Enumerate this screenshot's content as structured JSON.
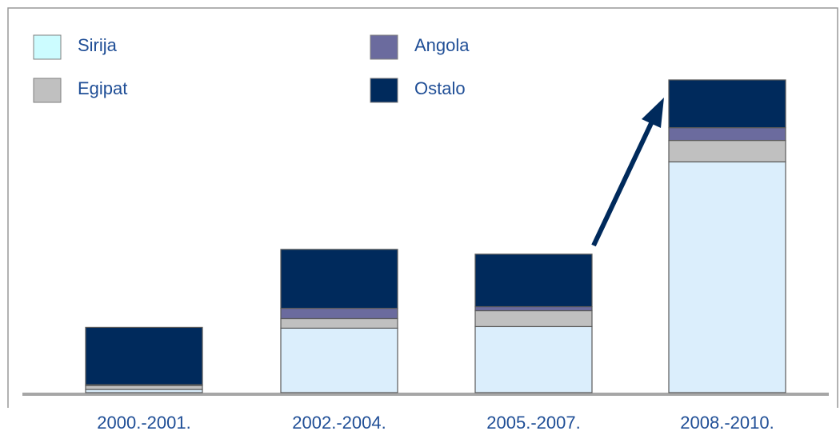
{
  "chart_data": {
    "type": "stacked_bar",
    "categories": [
      "2000.-2001.",
      "2002.-2004.",
      "2005.-2007.",
      "2008.-2010."
    ],
    "series": [
      {
        "name": "Sirija",
        "color": "#dbeefc",
        "values": [
          4,
          81,
          83,
          290
        ]
      },
      {
        "name": "Egipat",
        "color": "#c0c0c0",
        "values": [
          5,
          12,
          20,
          27
        ]
      },
      {
        "name": "Angola",
        "color": "#6b6b9e",
        "values": [
          1,
          13,
          5,
          16
        ]
      },
      {
        "name": "Ostalo",
        "color": "#002a5c",
        "values": [
          72,
          74,
          66,
          60
        ]
      }
    ],
    "ylim": [
      0,
      400
    ]
  }
}
